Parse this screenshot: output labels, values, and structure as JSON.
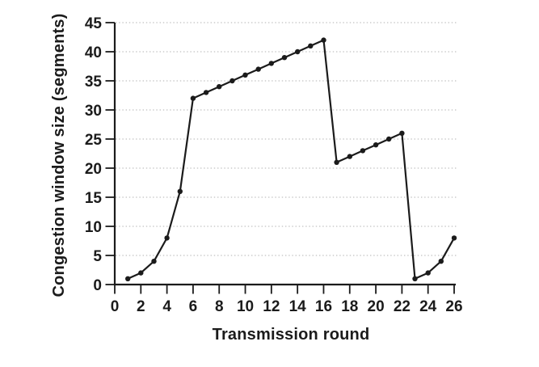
{
  "figure": {
    "background_color": "#ffffff",
    "description": "Line chart of TCP congestion window size versus transmission round"
  },
  "chart_data": {
    "type": "line",
    "title": "",
    "xlabel": "Transmission round",
    "ylabel": "Congestion window size (segments)",
    "x": [
      1,
      2,
      3,
      4,
      5,
      6,
      7,
      8,
      9,
      10,
      11,
      12,
      13,
      14,
      15,
      16,
      17,
      18,
      19,
      20,
      21,
      22,
      23,
      24,
      25,
      26
    ],
    "y": [
      1,
      2,
      4,
      8,
      16,
      32,
      33,
      34,
      35,
      36,
      37,
      38,
      39,
      40,
      41,
      42,
      21,
      22,
      23,
      24,
      25,
      26,
      1,
      2,
      4,
      8
    ],
    "xlim": [
      0,
      26
    ],
    "ylim": [
      0,
      45
    ],
    "x_ticks": [
      0,
      2,
      4,
      6,
      8,
      10,
      12,
      14,
      16,
      18,
      20,
      22,
      24,
      26
    ],
    "y_ticks": [
      0,
      5,
      10,
      15,
      20,
      25,
      30,
      35,
      40,
      45
    ],
    "grid": {
      "horizontal": true,
      "vertical": false,
      "style": "dotted",
      "color": "#a3a3a3"
    },
    "legend": "none",
    "line_color": "#1b1b1b",
    "marker": {
      "shape": "filled-circle",
      "color": "#1b1b1b",
      "radius": 3.2
    }
  }
}
